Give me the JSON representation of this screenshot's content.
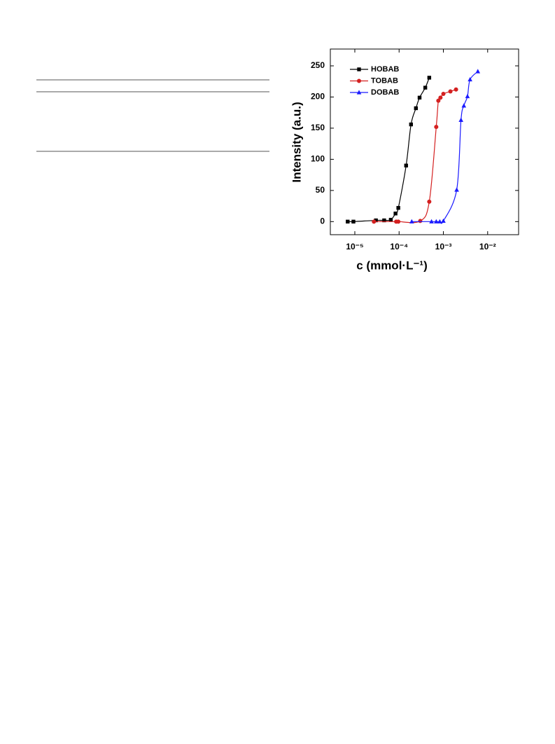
{
  "chart_data": {
    "type": "scatter",
    "xlabel": "c (mmol·L⁻¹)",
    "ylabel": "Intensity (a.u.)",
    "xscale": "log",
    "xlim": [
      2.8e-06,
      0.05
    ],
    "ylim": [
      -21,
      277
    ],
    "xticks": [
      {
        "value": 1e-05,
        "label": "10⁻⁵"
      },
      {
        "value": 0.0001,
        "label": "10⁻⁴"
      },
      {
        "value": 0.001,
        "label": "10⁻³"
      },
      {
        "value": 0.01,
        "label": "10⁻²"
      }
    ],
    "yticks": [
      0,
      50,
      100,
      150,
      200,
      250
    ],
    "legend": "upper left",
    "series": [
      {
        "name": "HOBAB",
        "color": "#000000",
        "marker": "square",
        "x": [
          6.9e-06,
          9.3e-06,
          3e-05,
          4.6e-05,
          6.5e-05,
          8.3e-05,
          9.6e-05,
          0.000144,
          0.000186,
          0.00024,
          0.00029,
          0.00039,
          0.00048
        ],
        "values": [
          0,
          0,
          2,
          2,
          3,
          13,
          22,
          90,
          156,
          182,
          199,
          215,
          231
        ]
      },
      {
        "name": "TOBAB",
        "color": "#d42020",
        "marker": "circle",
        "x": [
          2.7e-05,
          8.6e-05,
          9.6e-05,
          0.0003,
          0.00048,
          0.00069,
          0.00077,
          0.00086,
          0.001,
          0.00144,
          0.00193
        ],
        "values": [
          0,
          0,
          0,
          1,
          32,
          152,
          194,
          199,
          205,
          209,
          212
        ]
      },
      {
        "name": "DOBAB",
        "color": "#1a1aff",
        "marker": "triangle",
        "x": [
          0.000193,
          0.00054,
          0.00069,
          0.00083,
          0.001,
          0.002,
          0.0025,
          0.0029,
          0.0035,
          0.004,
          0.006
        ],
        "values": [
          0,
          0,
          0,
          0,
          1,
          51,
          163,
          186,
          201,
          228,
          241
        ]
      }
    ]
  }
}
